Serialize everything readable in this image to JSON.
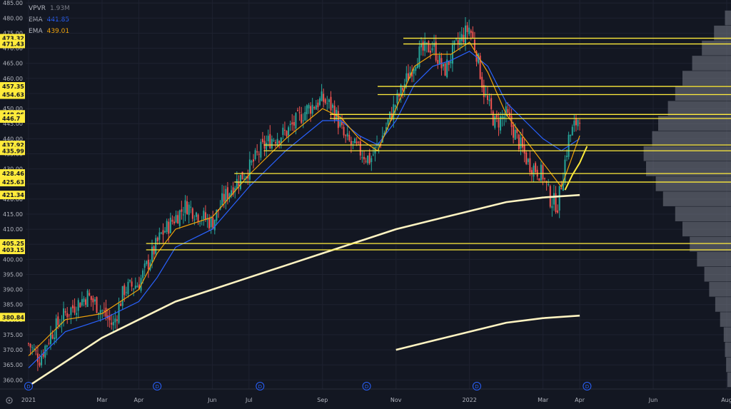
{
  "chart_data": {
    "type": "candlestick",
    "title": "",
    "xlabel": "",
    "ylabel": "",
    "ylim": [
      357,
      486
    ],
    "y_ticks": [
      360,
      365,
      370,
      375,
      380,
      385,
      390,
      395,
      400,
      405,
      410,
      415,
      420,
      425,
      430,
      435,
      440,
      445,
      450,
      455,
      460,
      465,
      470,
      475,
      480,
      485
    ],
    "y_tick_labels": [
      "360.00",
      "365.00",
      "370.00",
      "375.00",
      "380.00",
      "385.00",
      "390.00",
      "395.00",
      "400.00",
      "405.00",
      "410.00",
      "415.00",
      "420.00",
      "425.00",
      "430.00",
      "435.00",
      "440.00",
      "445.00",
      "450.00",
      "455.00",
      "460.00",
      "465.00",
      "470.00",
      "475.00",
      "480.00",
      "485.00"
    ],
    "x_tick_labels": [
      {
        "label": "2021",
        "t": 0
      },
      {
        "label": "Mar",
        "t": 2
      },
      {
        "label": "Apr",
        "t": 3
      },
      {
        "label": "Jun",
        "t": 5
      },
      {
        "label": "Jul",
        "t": 6
      },
      {
        "label": "Sep",
        "t": 8
      },
      {
        "label": "Nov",
        "t": 10
      },
      {
        "label": "2022",
        "t": 12
      },
      {
        "label": "Mar",
        "t": 14
      },
      {
        "label": "Apr",
        "t": 15
      },
      {
        "label": "Jun",
        "t": 17
      },
      {
        "label": "Aug",
        "t": 19
      }
    ],
    "dividend_markers": {
      "symbol": "D",
      "t": [
        0,
        3.5,
        6.3,
        9.2,
        12.2,
        15.2
      ]
    },
    "legend": [
      {
        "name": "VPVR",
        "value": "1.93M",
        "color": "#787b86"
      },
      {
        "name": "EMA",
        "value": "441.85",
        "color": "#2962ff"
      },
      {
        "name": "EMA",
        "value": "439.01",
        "color": "#f0a30a"
      }
    ],
    "price_levels": [
      {
        "value": 473.32,
        "label": "473.32",
        "t_start": 10.2
      },
      {
        "value": 471.43,
        "label": "471.43",
        "t_start": 10.2
      },
      {
        "value": 457.35,
        "label": "457.35",
        "t_start": 9.5
      },
      {
        "value": 454.63,
        "label": "454.63",
        "t_start": 9.5
      },
      {
        "value": 448.06,
        "label": "448.06",
        "t_start": 8.2
      },
      {
        "value": 446.7,
        "label": "446.7",
        "t_start": 8.2
      },
      {
        "value": 437.92,
        "label": "437.92",
        "t_start": 6.4
      },
      {
        "value": 435.99,
        "label": "435.99",
        "t_start": 6.4
      },
      {
        "value": 428.46,
        "label": "428.46",
        "t_start": 5.6
      },
      {
        "value": 425.63,
        "label": "425.63",
        "t_start": 5.6
      },
      {
        "value": 405.25,
        "label": "405.25",
        "t_start": 3.2
      },
      {
        "value": 403.15,
        "label": "403.15",
        "t_start": 3.2
      }
    ],
    "price_tags": [
      {
        "value": 421.34,
        "label": "421.34"
      },
      {
        "value": 380.84,
        "label": "380.84"
      }
    ],
    "close_path": [
      [
        0,
        372
      ],
      [
        0.3,
        367
      ],
      [
        0.6,
        375
      ],
      [
        1,
        382
      ],
      [
        1.3,
        385
      ],
      [
        1.6,
        388
      ],
      [
        2,
        383
      ],
      [
        2.3,
        378
      ],
      [
        2.6,
        390
      ],
      [
        3,
        392
      ],
      [
        3.3,
        400
      ],
      [
        3.6,
        408
      ],
      [
        4,
        414
      ],
      [
        4.3,
        418
      ],
      [
        4.6,
        415
      ],
      [
        5,
        412
      ],
      [
        5.3,
        420
      ],
      [
        5.6,
        425
      ],
      [
        6,
        430
      ],
      [
        6.3,
        436
      ],
      [
        6.6,
        440
      ],
      [
        7,
        442
      ],
      [
        7.3,
        446
      ],
      [
        7.6,
        450
      ],
      [
        8,
        453
      ],
      [
        8.3,
        450
      ],
      [
        8.6,
        440
      ],
      [
        9,
        436
      ],
      [
        9.3,
        433
      ],
      [
        9.6,
        440
      ],
      [
        10,
        452
      ],
      [
        10.3,
        460
      ],
      [
        10.6,
        468
      ],
      [
        11,
        471
      ],
      [
        11.3,
        462
      ],
      [
        11.6,
        470
      ],
      [
        12,
        477
      ],
      [
        12.2,
        468
      ],
      [
        12.4,
        455
      ],
      [
        12.7,
        445
      ],
      [
        13,
        448
      ],
      [
        13.3,
        440
      ],
      [
        13.6,
        432
      ],
      [
        14,
        428
      ],
      [
        14.2,
        420
      ],
      [
        14.4,
        418
      ],
      [
        14.7,
        440
      ],
      [
        15,
        448
      ]
    ],
    "ema_fast": [
      [
        0,
        368
      ],
      [
        1,
        380
      ],
      [
        2,
        382
      ],
      [
        3,
        390
      ],
      [
        3.5,
        402
      ],
      [
        4,
        410
      ],
      [
        5,
        414
      ],
      [
        6,
        428
      ],
      [
        7,
        440
      ],
      [
        8,
        450
      ],
      [
        8.5,
        447
      ],
      [
        9,
        440
      ],
      [
        9.5,
        436
      ],
      [
        10,
        450
      ],
      [
        10.5,
        464
      ],
      [
        11,
        468
      ],
      [
        11.5,
        468
      ],
      [
        12,
        472
      ],
      [
        12.5,
        462
      ],
      [
        13,
        448
      ],
      [
        13.5,
        440
      ],
      [
        14,
        432
      ],
      [
        14.5,
        424
      ],
      [
        15,
        441
      ]
    ],
    "ema_slow": [
      [
        0,
        364
      ],
      [
        1,
        376
      ],
      [
        2,
        380
      ],
      [
        3,
        386
      ],
      [
        3.5,
        394
      ],
      [
        4,
        404
      ],
      [
        5,
        410
      ],
      [
        6,
        424
      ],
      [
        7,
        436
      ],
      [
        8,
        446
      ],
      [
        8.5,
        446
      ],
      [
        9,
        441
      ],
      [
        9.5,
        438
      ],
      [
        10,
        446
      ],
      [
        10.5,
        458
      ],
      [
        11,
        464
      ],
      [
        11.5,
        466
      ],
      [
        12,
        469
      ],
      [
        12.5,
        464
      ],
      [
        13,
        452
      ],
      [
        13.5,
        446
      ],
      [
        14,
        440
      ],
      [
        14.5,
        436
      ],
      [
        15,
        440
      ]
    ],
    "sma_200": [
      [
        0,
        358
      ],
      [
        1,
        366
      ],
      [
        2,
        374
      ],
      [
        3,
        380
      ],
      [
        4,
        386
      ],
      [
        5,
        390
      ],
      [
        6,
        394
      ],
      [
        7,
        398
      ],
      [
        8,
        402
      ],
      [
        9,
        406
      ],
      [
        10,
        410
      ],
      [
        11,
        413
      ],
      [
        12,
        416
      ],
      [
        13,
        419
      ],
      [
        14,
        420.5
      ],
      [
        15,
        421.34
      ]
    ],
    "annotation_curve": [
      [
        14.6,
        423
      ],
      [
        14.8,
        428
      ],
      [
        15,
        432
      ],
      [
        15.2,
        437.5
      ]
    ],
    "volume_profile": [
      [
        360,
        0.03
      ],
      [
        365,
        0.04
      ],
      [
        370,
        0.05
      ],
      [
        375,
        0.06
      ],
      [
        380,
        0.09
      ],
      [
        385,
        0.13
      ],
      [
        390,
        0.18
      ],
      [
        395,
        0.22
      ],
      [
        400,
        0.28
      ],
      [
        405,
        0.34
      ],
      [
        410,
        0.4
      ],
      [
        415,
        0.46
      ],
      [
        420,
        0.56
      ],
      [
        425,
        0.62
      ],
      [
        430,
        0.7
      ],
      [
        435,
        0.72
      ],
      [
        440,
        0.65
      ],
      [
        445,
        0.6
      ],
      [
        450,
        0.52
      ],
      [
        455,
        0.46
      ],
      [
        460,
        0.4
      ],
      [
        465,
        0.32
      ],
      [
        470,
        0.24
      ],
      [
        475,
        0.14
      ],
      [
        480,
        0.05
      ]
    ]
  }
}
